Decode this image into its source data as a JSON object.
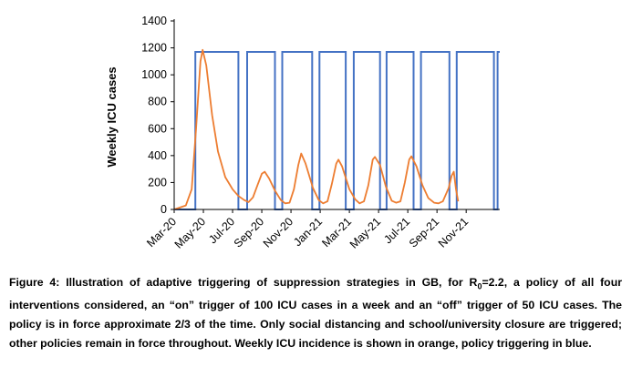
{
  "chart_data": {
    "type": "line",
    "ylabel": "Weekly ICU cases",
    "xlabel": "",
    "title": "",
    "ylim": [
      0,
      1400
    ],
    "yticks": [
      "0",
      "200",
      "400",
      "600",
      "800",
      "1000",
      "1200",
      "1400"
    ],
    "xtick_labels": [
      "Mar-20",
      "May-20",
      "Jul-20",
      "Sep-20",
      "Nov-20",
      "Jan-21",
      "Mar-21",
      "May-21",
      "Jul-21",
      "Sep-21",
      "Nov-21"
    ],
    "x_range_months": [
      0,
      22.3
    ],
    "grid": false,
    "legend": "none",
    "series": [
      {
        "color": "#4472C4",
        "points": [
          [
            0,
            0
          ],
          [
            1.45,
            0
          ],
          [
            1.45,
            1170
          ],
          [
            4.4,
            1170
          ],
          [
            4.4,
            0
          ],
          [
            5.0,
            0
          ],
          [
            5.0,
            1170
          ],
          [
            6.9,
            1170
          ],
          [
            6.9,
            0
          ],
          [
            7.4,
            0
          ],
          [
            7.4,
            1170
          ],
          [
            9.45,
            1170
          ],
          [
            9.45,
            0
          ],
          [
            9.95,
            0
          ],
          [
            9.95,
            1170
          ],
          [
            11.75,
            1170
          ],
          [
            11.75,
            0
          ],
          [
            12.3,
            0
          ],
          [
            12.3,
            1170
          ],
          [
            14.1,
            1170
          ],
          [
            14.1,
            0
          ],
          [
            14.55,
            0
          ],
          [
            14.55,
            1170
          ],
          [
            16.4,
            1170
          ],
          [
            16.4,
            0
          ],
          [
            16.9,
            0
          ],
          [
            16.9,
            1170
          ],
          [
            18.85,
            1170
          ],
          [
            18.85,
            0
          ],
          [
            19.35,
            0
          ],
          [
            19.35,
            1170
          ],
          [
            21.9,
            1170
          ],
          [
            21.9,
            0
          ],
          [
            22.15,
            0
          ],
          [
            22.15,
            1170
          ],
          [
            22.3,
            1170
          ]
        ]
      },
      {
        "color": "#ED7D31",
        "points": [
          [
            0,
            0
          ],
          [
            0.8,
            30
          ],
          [
            1.2,
            150
          ],
          [
            1.5,
            600
          ],
          [
            1.8,
            1100
          ],
          [
            1.95,
            1185
          ],
          [
            2.2,
            1070
          ],
          [
            2.6,
            700
          ],
          [
            3.0,
            430
          ],
          [
            3.5,
            240
          ],
          [
            4.0,
            150
          ],
          [
            4.4,
            100
          ],
          [
            4.8,
            70
          ],
          [
            5.1,
            55
          ],
          [
            5.4,
            90
          ],
          [
            5.7,
            180
          ],
          [
            6.0,
            265
          ],
          [
            6.2,
            280
          ],
          [
            6.5,
            230
          ],
          [
            6.9,
            140
          ],
          [
            7.3,
            70
          ],
          [
            7.6,
            45
          ],
          [
            7.9,
            50
          ],
          [
            8.2,
            150
          ],
          [
            8.5,
            330
          ],
          [
            8.7,
            415
          ],
          [
            9.0,
            340
          ],
          [
            9.5,
            160
          ],
          [
            9.9,
            70
          ],
          [
            10.2,
            45
          ],
          [
            10.5,
            60
          ],
          [
            10.8,
            190
          ],
          [
            11.1,
            340
          ],
          [
            11.25,
            370
          ],
          [
            11.5,
            320
          ],
          [
            12.0,
            150
          ],
          [
            12.4,
            75
          ],
          [
            12.7,
            45
          ],
          [
            13.0,
            60
          ],
          [
            13.3,
            180
          ],
          [
            13.6,
            370
          ],
          [
            13.75,
            390
          ],
          [
            14.1,
            330
          ],
          [
            14.5,
            170
          ],
          [
            14.9,
            65
          ],
          [
            15.2,
            50
          ],
          [
            15.5,
            60
          ],
          [
            15.8,
            200
          ],
          [
            16.1,
            370
          ],
          [
            16.25,
            395
          ],
          [
            16.6,
            320
          ],
          [
            17.0,
            180
          ],
          [
            17.4,
            85
          ],
          [
            17.8,
            50
          ],
          [
            18.1,
            45
          ],
          [
            18.4,
            60
          ],
          [
            18.8,
            160
          ],
          [
            19.0,
            250
          ],
          [
            19.15,
            280
          ],
          [
            19.3,
            150
          ],
          [
            19.45,
            60
          ]
        ]
      }
    ]
  },
  "caption": {
    "prefix": "Figure 4: Illustration of adaptive triggering of suppression strategies in GB, for R",
    "subscript": "0",
    "suffix": "=2.2, a policy of all four interventions considered, an “on” trigger of 100 ICU cases in a week and an “off” trigger of 50 ICU cases.  The policy is in force approximate 2/3 of the time. Only social distancing and school/university closure are triggered; other policies remain in force throughout. Weekly ICU incidence is shown in orange, policy triggering in blue."
  }
}
